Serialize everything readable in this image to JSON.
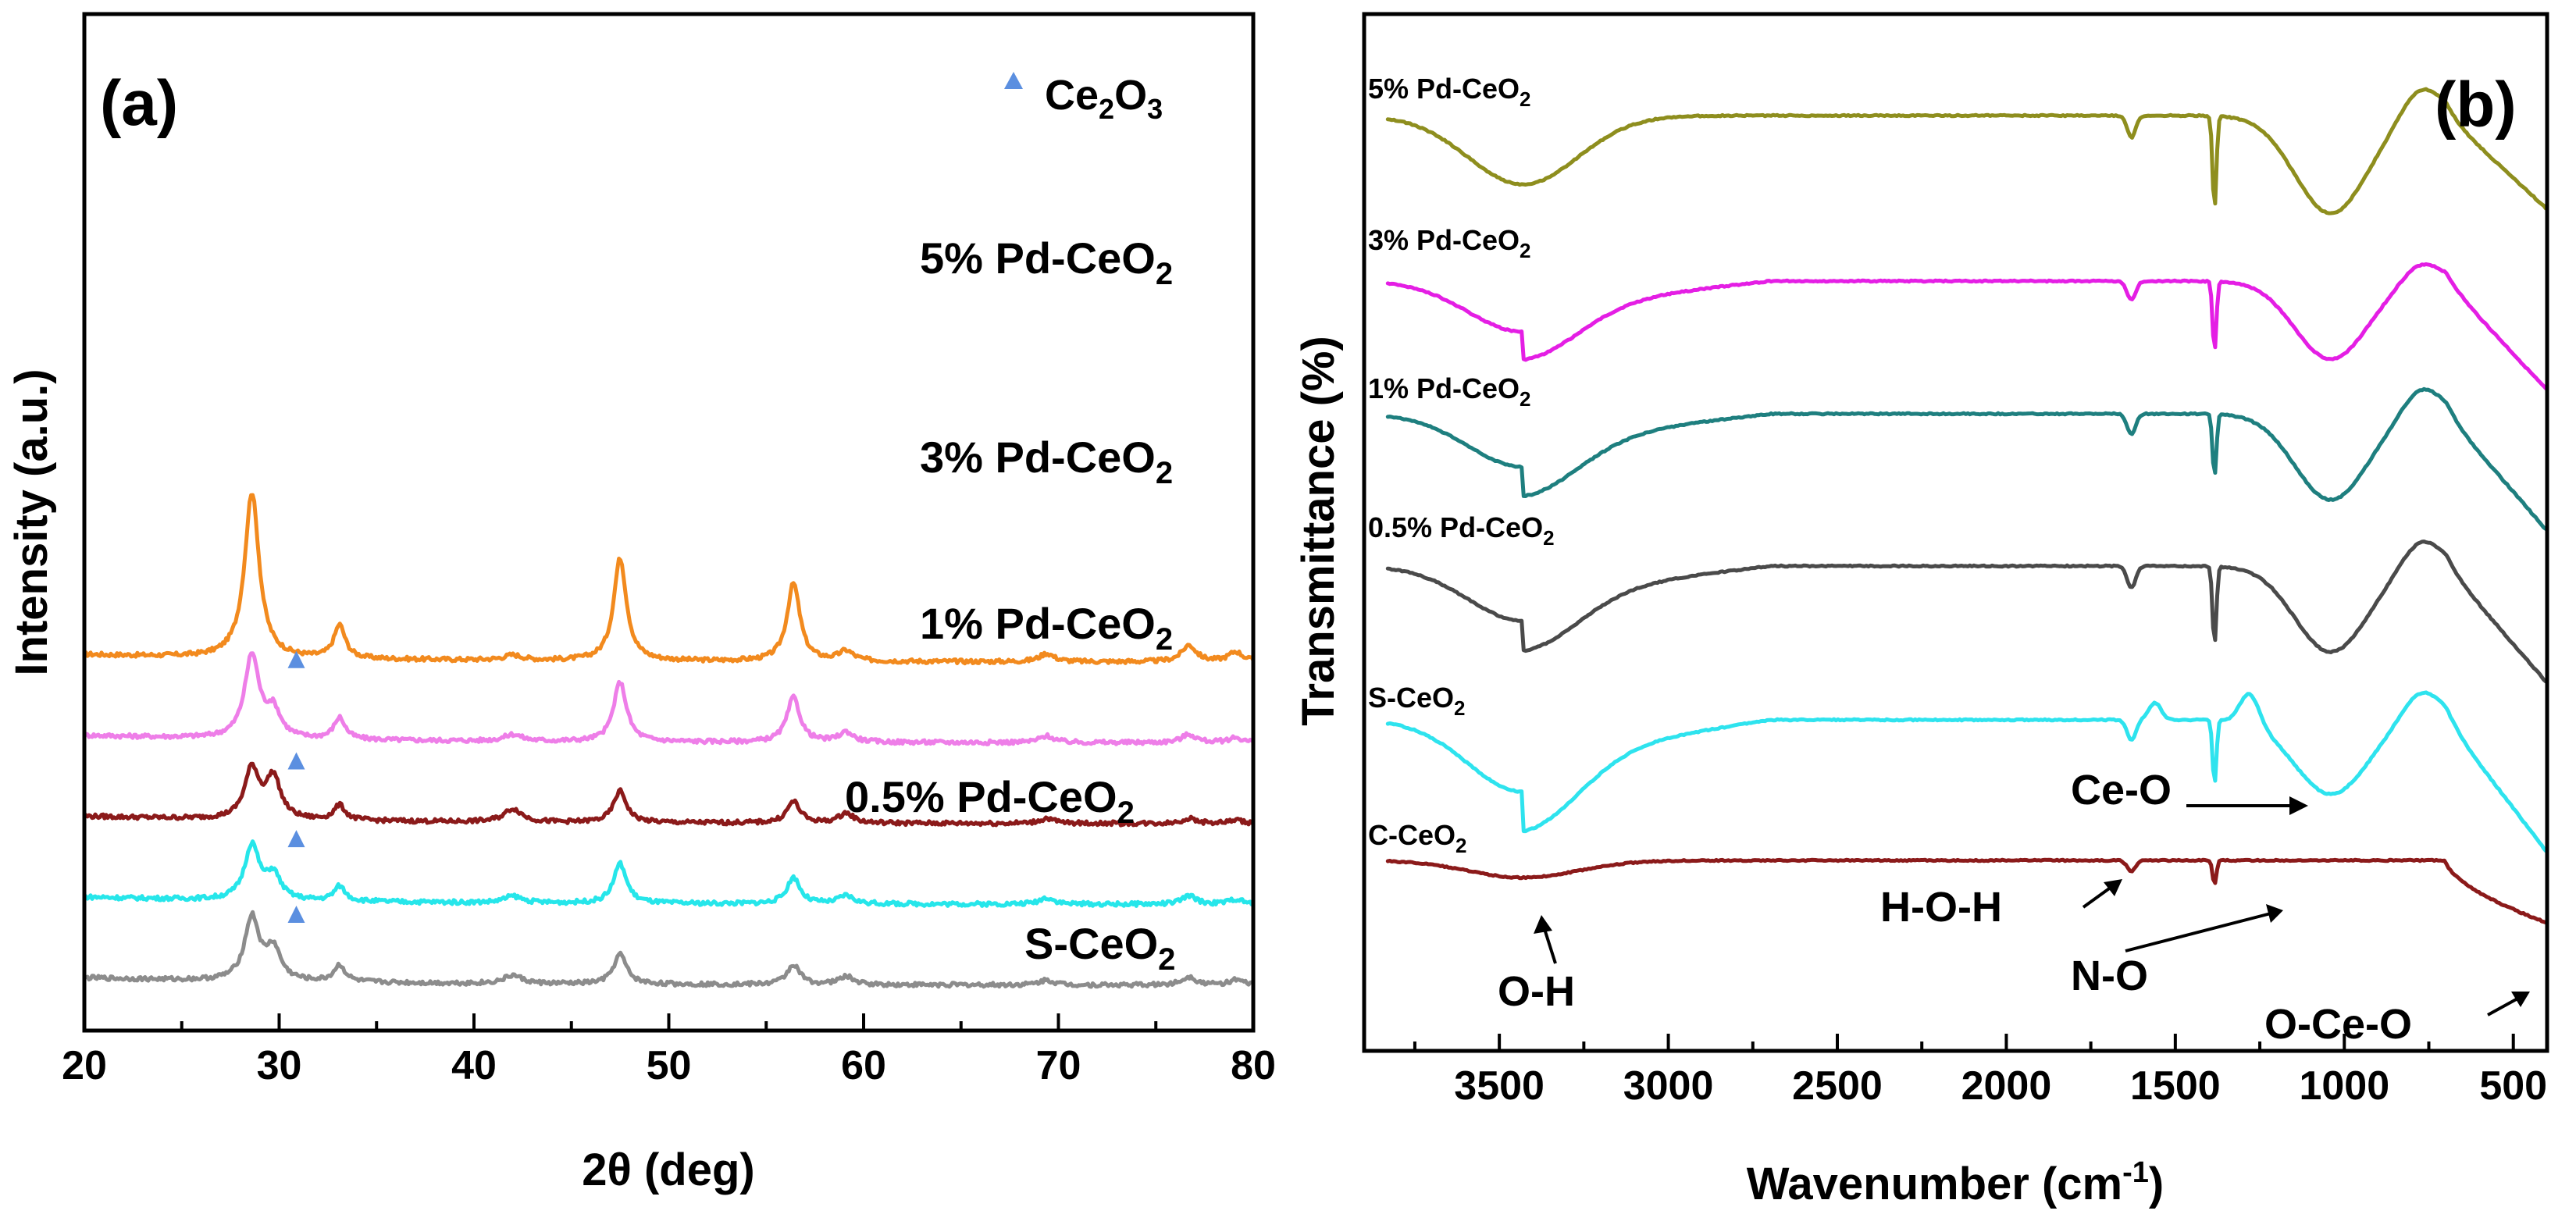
{
  "chart_data": [
    {
      "type": "line",
      "panel_label": "(a)",
      "title": "",
      "xlabel": "2θ (deg)",
      "ylabel": "Intensity (a.u.)",
      "xlim": [
        20,
        80
      ],
      "xticks": [
        "20",
        "30",
        "40",
        "50",
        "60",
        "70",
        "80"
      ],
      "yticks": [],
      "legend": {
        "entries": [
          {
            "marker": "triangle",
            "color": "#5b8fe0",
            "label": "Ce2O3"
          }
        ],
        "placement": "top-right"
      },
      "peak_positions": [
        28.6,
        33.1,
        42.0,
        47.5,
        56.4,
        59.1,
        69.4,
        76.7,
        79.1
      ],
      "ce2o3_marker_2theta": 30.0,
      "series": [
        {
          "name": "5% Pd-CeO2",
          "color": "#f28a1e",
          "baseline": 0.82,
          "offset_rel": 4.0,
          "peak_heights": [
            1.0,
            0.2,
            0.03,
            0.62,
            0.47,
            0.06,
            0.05,
            0.1,
            0.06
          ],
          "ce2o3_peak": 0.0,
          "ce2o3_marker": false
        },
        {
          "name": "3% Pd-CeO2",
          "color": "#ee7ee8",
          "baseline": 0.55,
          "offset_rel": 3.0,
          "peak_heights": [
            0.5,
            0.13,
            0.04,
            0.36,
            0.27,
            0.06,
            0.04,
            0.05,
            0.03
          ],
          "ce2o3_peak": 0.16,
          "ce2o3_marker": true
        },
        {
          "name": "1% Pd-CeO2",
          "color": "#8b1a1a",
          "baseline": 0.34,
          "offset_rel": 2.0,
          "peak_heights": [
            0.3,
            0.09,
            0.08,
            0.19,
            0.13,
            0.06,
            0.03,
            0.03,
            0.02
          ],
          "ce2o3_peak": 0.25,
          "ce2o3_marker": true
        },
        {
          "name": "0.5% Pd-CeO2",
          "color": "#26e6ea",
          "baseline": 0.16,
          "offset_rel": 1.0,
          "peak_heights": [
            0.33,
            0.09,
            0.04,
            0.24,
            0.16,
            0.05,
            0.04,
            0.05,
            0.03
          ],
          "ce2o3_peak": 0.15,
          "ce2o3_marker": true
        },
        {
          "name": "S-CeO2",
          "color": "#8c8c8c",
          "baseline": 0.0,
          "offset_rel": 0.0,
          "peak_heights": [
            0.38,
            0.1,
            0.05,
            0.18,
            0.12,
            0.05,
            0.03,
            0.05,
            0.03
          ],
          "ce2o3_peak": 0.19,
          "ce2o3_marker": true
        }
      ],
      "series_labels": [
        {
          "main": "5% Pd-CeO",
          "sub": "2"
        },
        {
          "main": "3% Pd-CeO",
          "sub": "2"
        },
        {
          "main": "1% Pd-CeO",
          "sub": "2"
        },
        {
          "main": "0.5% Pd-CeO",
          "sub": "2"
        },
        {
          "main": "S-CeO",
          "sub": "2"
        }
      ],
      "legend_label": {
        "main": "Ce",
        "sub1": "2",
        "mid": "O",
        "sub2": "3"
      }
    },
    {
      "type": "line",
      "panel_label": "(b)",
      "title": "",
      "xlabel": "Wavenumber (cm",
      "xlabel_sup": "-1",
      "xlabel_close": ")",
      "ylabel": "Transmittance (%)",
      "xlim": [
        3900,
        400
      ],
      "x_reversed": true,
      "xticks": [
        "3500",
        "3000",
        "2500",
        "2000",
        "1500",
        "1000",
        "500"
      ],
      "yticks": [],
      "series": [
        {
          "name": "5% Pd-CeO2",
          "color": "#8e8e1e",
          "offset_rel": 5.0
        },
        {
          "name": "3% Pd-CeO2",
          "color": "#e41ee4",
          "offset_rel": 4.0
        },
        {
          "name": "1% Pd-CeO2",
          "color": "#1e7f7f",
          "offset_rel": 3.0
        },
        {
          "name": "0.5% Pd-CeO2",
          "color": "#4a4a4a",
          "offset_rel": 2.0
        },
        {
          "name": "S-CeO2",
          "color": "#2ee3ee",
          "offset_rel": 1.0
        },
        {
          "name": "C-CeO2",
          "color": "#8b1a1a",
          "offset_rel": 0.0
        }
      ],
      "series_labels": [
        {
          "main": "5% Pd-CeO",
          "sub": "2"
        },
        {
          "main": "3% Pd-CeO",
          "sub": "2"
        },
        {
          "main": "1% Pd-CeO",
          "sub": "2"
        },
        {
          "main": "0.5% Pd-CeO",
          "sub": "2"
        },
        {
          "main": "S-CeO",
          "sub": "2"
        },
        {
          "main": "C-CeO",
          "sub": "2"
        }
      ],
      "annotations": [
        {
          "text": "Ce-O",
          "target_wavenumber": 1040
        },
        {
          "text": "H-O-H",
          "target_wavenumber": 1630
        },
        {
          "text": "N-O",
          "target_wavenumber": 1384
        },
        {
          "text": "O-H",
          "target_wavenumber": 3420
        },
        {
          "text": "O-Ce-O",
          "target_wavenumber": 560
        }
      ]
    }
  ]
}
